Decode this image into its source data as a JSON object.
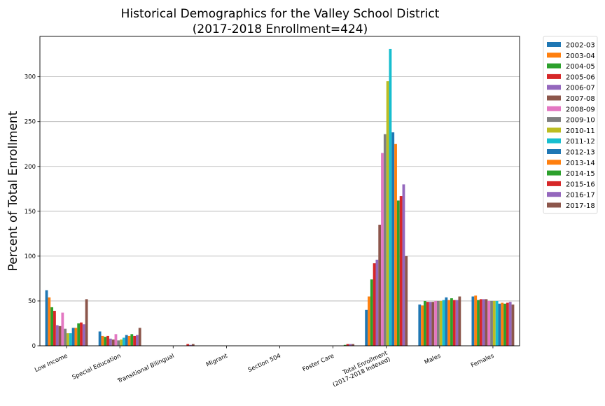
{
  "chart_data": {
    "type": "bar",
    "title_line1": "Historical Demographics for the Valley School District",
    "title_line2": "(2017-2018 Enrollment=424)",
    "xlabel": "",
    "ylabel": "Percent of Total Enrollment",
    "ylim": [
      0,
      345
    ],
    "yticks": [
      0,
      50,
      100,
      150,
      200,
      250,
      300
    ],
    "grid": "y",
    "legend_position": "outside-top-right",
    "categories": [
      [
        "Low Income"
      ],
      [
        "Special Education"
      ],
      [
        "Transitional Bilingual"
      ],
      [
        "Migrant"
      ],
      [
        "Section 504"
      ],
      [
        "Foster Care"
      ],
      [
        "Total Enrollment",
        "(2017-2018 Indexed)"
      ],
      [
        "Males"
      ],
      [
        "Females"
      ]
    ],
    "series": [
      {
        "name": "2002-03",
        "color": "#1f77b4",
        "values": [
          62,
          16,
          0,
          0,
          0,
          0,
          40,
          46,
          55
        ]
      },
      {
        "name": "2003-04",
        "color": "#ff7f0e",
        "values": [
          54,
          11,
          0,
          0,
          0,
          0,
          55,
          45,
          56
        ]
      },
      {
        "name": "2004-05",
        "color": "#2ca02c",
        "values": [
          43,
          10,
          0,
          0,
          0,
          0,
          74,
          50,
          51
        ]
      },
      {
        "name": "2005-06",
        "color": "#d62728",
        "values": [
          39,
          11,
          0,
          0,
          0,
          0,
          92,
          49,
          52
        ]
      },
      {
        "name": "2006-07",
        "color": "#9467bd",
        "values": [
          23,
          8,
          0,
          0,
          0,
          0,
          96,
          49,
          52
        ]
      },
      {
        "name": "2007-08",
        "color": "#8c564b",
        "values": [
          22,
          7,
          0,
          0,
          0,
          0,
          135,
          49,
          52
        ]
      },
      {
        "name": "2008-09",
        "color": "#e377c2",
        "values": [
          37,
          13,
          0,
          0,
          0,
          0,
          215,
          50,
          50
        ]
      },
      {
        "name": "2009-10",
        "color": "#7f7f7f",
        "values": [
          19,
          6,
          0,
          0,
          0,
          0,
          236,
          50,
          50
        ]
      },
      {
        "name": "2010-11",
        "color": "#bcbd22",
        "values": [
          14,
          7,
          0,
          0,
          0,
          0,
          295,
          50,
          50
        ]
      },
      {
        "name": "2011-12",
        "color": "#17becf",
        "values": [
          14,
          9,
          0,
          0,
          0,
          0,
          331,
          51,
          50
        ]
      },
      {
        "name": "2012-13",
        "color": "#1f77b4",
        "values": [
          20,
          12,
          0,
          0,
          0,
          0,
          238,
          54,
          47
        ]
      },
      {
        "name": "2013-14",
        "color": "#ff7f0e",
        "values": [
          20,
          11,
          0,
          0,
          0,
          0,
          225,
          51,
          48
        ]
      },
      {
        "name": "2014-15",
        "color": "#2ca02c",
        "values": [
          25,
          13,
          0,
          0,
          0,
          1,
          162,
          53,
          47
        ]
      },
      {
        "name": "2015-16",
        "color": "#d62728",
        "values": [
          26,
          11,
          2,
          0,
          0,
          2,
          167,
          51,
          48
        ]
      },
      {
        "name": "2016-17",
        "color": "#9467bd",
        "values": [
          24,
          12,
          1,
          0,
          0,
          2,
          180,
          51,
          49
        ]
      },
      {
        "name": "2017-18",
        "color": "#8c564b",
        "values": [
          52,
          20,
          2,
          0,
          0,
          2,
          100,
          55,
          46
        ]
      }
    ]
  }
}
